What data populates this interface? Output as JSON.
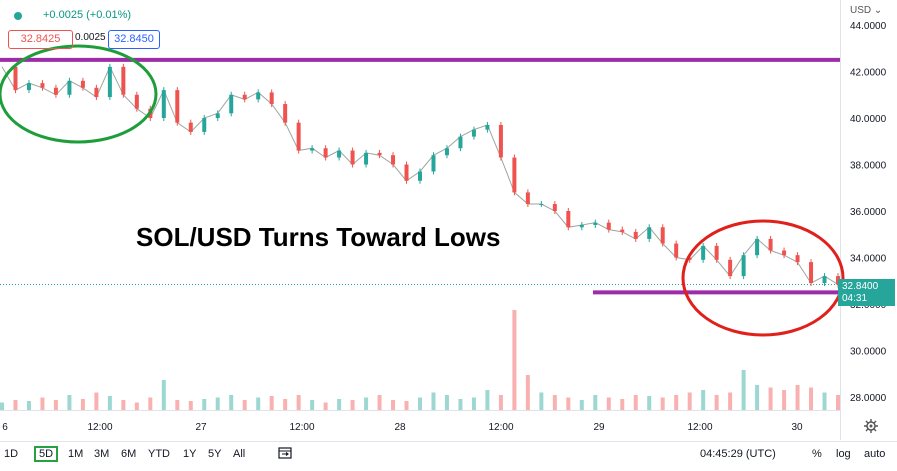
{
  "header": {
    "change": "+0.0025 (+0.01%)",
    "bid": "32.8425",
    "spread": "0.0025",
    "ask": "32.8450",
    "currency": "USD",
    "currency_caret": "⌄",
    "last_price": "32.8400",
    "countdown": "04:31"
  },
  "annotation": {
    "title": "SOL/USD Turns Toward Lows"
  },
  "colors": {
    "up": "#26a69a",
    "down": "#ef5350",
    "level_line": "#9c2ca8",
    "circle_green": "#1e9d3b",
    "circle_red": "#e0201b"
  },
  "chart_data": {
    "type": "line",
    "x_ticks": [
      "6",
      "12:00",
      "27",
      "12:00",
      "28",
      "12:00",
      "29",
      "12:00",
      "30"
    ],
    "y_ticks": [
      "44.0000",
      "42.0000",
      "40.0000",
      "38.0000",
      "36.0000",
      "34.0000",
      "32.0000",
      "30.0000",
      "28.0000"
    ],
    "ylim": [
      27.0,
      45.0
    ],
    "series": [
      {
        "values": [
          42.2,
          41.2,
          41.5,
          41.3,
          41.0,
          41.6,
          41.3,
          40.9,
          42.2,
          41.0,
          40.4,
          40.0,
          41.2,
          39.8,
          39.4,
          40.0,
          40.2,
          41.0,
          40.8,
          41.1,
          40.6,
          39.8,
          38.6,
          38.7,
          38.3,
          38.6,
          38.0,
          38.5,
          38.4,
          38.0,
          37.3,
          37.7,
          38.4,
          38.7,
          39.2,
          39.5,
          39.7,
          38.3,
          36.8,
          36.3,
          36.3,
          36.0,
          35.3,
          35.4,
          35.5,
          35.2,
          35.1,
          34.8,
          35.3,
          34.6,
          34.0,
          33.9,
          34.5,
          33.9,
          33.2,
          34.1,
          34.8,
          34.3,
          34.1,
          33.8,
          32.9,
          33.2,
          32.84
        ]
      }
    ],
    "horizontal_levels": [
      42.5,
      32.5
    ],
    "volume": [
      0.15,
      0.2,
      0.18,
      0.25,
      0.2,
      0.3,
      0.22,
      0.35,
      0.28,
      0.2,
      0.15,
      0.25,
      0.6,
      0.2,
      0.18,
      0.22,
      0.25,
      0.3,
      0.2,
      0.25,
      0.28,
      0.22,
      0.3,
      0.2,
      0.15,
      0.22,
      0.2,
      0.25,
      0.3,
      0.2,
      0.18,
      0.25,
      0.35,
      0.3,
      0.22,
      0.25,
      0.4,
      0.3,
      2.0,
      0.7,
      0.35,
      0.3,
      0.25,
      0.2,
      0.3,
      0.25,
      0.22,
      0.3,
      0.28,
      0.25,
      0.3,
      0.35,
      0.4,
      0.3,
      0.35,
      0.8,
      0.5,
      0.45,
      0.4,
      0.5,
      0.45,
      0.35,
      0.3
    ]
  },
  "toolbar": {
    "ranges": [
      "1D",
      "5D",
      "1M",
      "3M",
      "6M",
      "YTD",
      "1Y",
      "5Y",
      "All"
    ],
    "active": "5D",
    "clock": "04:45:29 (UTC)",
    "percent": "%",
    "log": "log",
    "auto": "auto"
  }
}
